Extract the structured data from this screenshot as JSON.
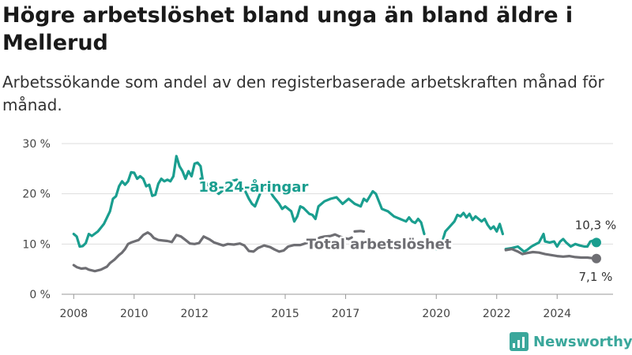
{
  "header": {
    "title": "Högre arbetslöshet bland unga än bland äldre i Mellerud",
    "subtitle": "Arbetssökande som andel av den registerbaserade arbetskraften månad för månad."
  },
  "brand": {
    "name": "Newsworthy",
    "icon": "bar-chart-icon",
    "color": "#3aa79b"
  },
  "chart_data": {
    "type": "line",
    "ylim": [
      0,
      30
    ],
    "xlim": [
      2007.6,
      2025.85
    ],
    "y_ticks": [
      {
        "value": 0,
        "label": "0 %"
      },
      {
        "value": 10,
        "label": "10 %"
      },
      {
        "value": 20,
        "label": "20 %"
      },
      {
        "value": 30,
        "label": "30 %"
      }
    ],
    "x_ticks": [
      {
        "value": 2008,
        "label": "2008"
      },
      {
        "value": 2010,
        "label": "2010"
      },
      {
        "value": 2012,
        "label": "2012"
      },
      {
        "value": 2015,
        "label": "2015"
      },
      {
        "value": 2017,
        "label": "2017"
      },
      {
        "value": 2020,
        "label": "2020"
      },
      {
        "value": 2022,
        "label": "2022"
      },
      {
        "value": 2024,
        "label": "2024"
      }
    ],
    "grid": true,
    "series": [
      {
        "name": "18-24-åringar",
        "color": "#1a9e8f",
        "end_label": "10,3 %",
        "segments": [
          [
            [
              2008.0,
              12.0
            ],
            [
              2008.1,
              11.5
            ],
            [
              2008.2,
              9.5
            ],
            [
              2008.3,
              9.6
            ],
            [
              2008.4,
              10.2
            ],
            [
              2008.5,
              12.0
            ],
            [
              2008.6,
              11.6
            ],
            [
              2008.8,
              12.5
            ],
            [
              2009.0,
              14.0
            ],
            [
              2009.2,
              16.5
            ],
            [
              2009.3,
              19.0
            ],
            [
              2009.4,
              19.5
            ],
            [
              2009.5,
              21.5
            ],
            [
              2009.6,
              22.5
            ],
            [
              2009.7,
              21.8
            ],
            [
              2009.8,
              22.5
            ],
            [
              2009.9,
              24.3
            ],
            [
              2010.0,
              24.2
            ],
            [
              2010.1,
              23.0
            ],
            [
              2010.2,
              23.5
            ],
            [
              2010.3,
              23.0
            ],
            [
              2010.4,
              21.5
            ],
            [
              2010.5,
              21.8
            ],
            [
              2010.6,
              19.6
            ],
            [
              2010.7,
              19.8
            ],
            [
              2010.8,
              22.0
            ],
            [
              2010.9,
              23.0
            ],
            [
              2011.0,
              22.5
            ],
            [
              2011.1,
              22.8
            ],
            [
              2011.2,
              22.5
            ],
            [
              2011.3,
              23.5
            ],
            [
              2011.4,
              27.5
            ],
            [
              2011.5,
              25.5
            ],
            [
              2011.6,
              24.5
            ],
            [
              2011.7,
              23.0
            ],
            [
              2011.8,
              24.5
            ],
            [
              2011.9,
              23.5
            ],
            [
              2012.0,
              26.0
            ],
            [
              2012.1,
              26.2
            ],
            [
              2012.2,
              25.5
            ],
            [
              2012.3,
              21.5
            ]
          ],
          [
            [
              2012.2,
              23.0
            ],
            [
              2012.5,
              21.5
            ],
            [
              2012.8,
              20.0
            ],
            [
              2013.0,
              21.0
            ],
            [
              2013.2,
              22.5
            ],
            [
              2013.4,
              22.8
            ],
            [
              2013.6,
              21.5
            ],
            [
              2013.8,
              19.0
            ],
            [
              2013.9,
              18.0
            ],
            [
              2014.0,
              17.5
            ],
            [
              2014.2,
              20.5
            ],
            [
              2014.4,
              21.5
            ],
            [
              2014.6,
              19.5
            ],
            [
              2014.8,
              18.0
            ],
            [
              2014.9,
              17.0
            ],
            [
              2015.0,
              17.5
            ],
            [
              2015.2,
              16.5
            ],
            [
              2015.3,
              14.5
            ],
            [
              2015.4,
              15.5
            ],
            [
              2015.5,
              17.5
            ],
            [
              2015.6,
              17.2
            ],
            [
              2015.8,
              16.0
            ],
            [
              2015.9,
              15.8
            ],
            [
              2016.0,
              15.0
            ],
            [
              2016.1,
              17.5
            ],
            [
              2016.3,
              18.5
            ],
            [
              2016.5,
              19.0
            ],
            [
              2016.7,
              19.3
            ],
            [
              2016.9,
              18.0
            ],
            [
              2017.1,
              19.0
            ],
            [
              2017.3,
              18.0
            ],
            [
              2017.5,
              17.5
            ],
            [
              2017.6,
              19.0
            ],
            [
              2017.7,
              18.5
            ],
            [
              2017.8,
              19.5
            ],
            [
              2017.9,
              20.5
            ],
            [
              2018.0,
              20.0
            ],
            [
              2018.1,
              18.5
            ],
            [
              2018.2,
              17.0
            ],
            [
              2018.4,
              16.5
            ],
            [
              2018.6,
              15.5
            ],
            [
              2018.8,
              15.0
            ],
            [
              2019.0,
              14.5
            ],
            [
              2019.1,
              15.3
            ],
            [
              2019.2,
              14.5
            ],
            [
              2019.3,
              14.2
            ],
            [
              2019.4,
              15.0
            ],
            [
              2019.5,
              14.3
            ],
            [
              2019.6,
              12.0
            ]
          ],
          [
            [
              2019.8,
              10.0
            ],
            [
              2019.9,
              9.5
            ],
            [
              2020.0,
              9.0
            ],
            [
              2020.1,
              9.8
            ],
            [
              2020.2,
              10.5
            ],
            [
              2020.3,
              12.5
            ],
            [
              2020.45,
              13.5
            ],
            [
              2020.6,
              14.5
            ],
            [
              2020.7,
              15.8
            ],
            [
              2020.8,
              15.5
            ],
            [
              2020.9,
              16.2
            ],
            [
              2021.0,
              15.3
            ],
            [
              2021.1,
              16.0
            ],
            [
              2021.2,
              14.8
            ],
            [
              2021.3,
              15.5
            ],
            [
              2021.5,
              14.5
            ],
            [
              2021.6,
              15.0
            ],
            [
              2021.7,
              13.8
            ],
            [
              2021.8,
              13.0
            ],
            [
              2021.9,
              13.5
            ],
            [
              2022.0,
              12.5
            ],
            [
              2022.1,
              14.0
            ],
            [
              2022.2,
              12.0
            ]
          ],
          [
            [
              2022.3,
              9.0
            ],
            [
              2022.5,
              9.2
            ],
            [
              2022.7,
              9.5
            ],
            [
              2022.9,
              8.5
            ],
            [
              2023.0,
              8.8
            ],
            [
              2023.15,
              9.5
            ],
            [
              2023.3,
              10.0
            ],
            [
              2023.4,
              10.3
            ],
            [
              2023.55,
              12.0
            ],
            [
              2023.6,
              10.5
            ],
            [
              2023.75,
              10.3
            ],
            [
              2023.9,
              10.5
            ],
            [
              2024.0,
              9.5
            ],
            [
              2024.1,
              10.5
            ],
            [
              2024.2,
              11.0
            ],
            [
              2024.3,
              10.3
            ],
            [
              2024.45,
              9.5
            ],
            [
              2024.6,
              10.0
            ],
            [
              2024.75,
              9.7
            ],
            [
              2024.9,
              9.5
            ],
            [
              2025.0,
              9.5
            ],
            [
              2025.1,
              10.5
            ],
            [
              2025.2,
              10.7
            ],
            [
              2025.3,
              10.3
            ]
          ]
        ]
      },
      {
        "name": "Total arbetslöshet",
        "color": "#6e6e73",
        "end_label": "7,1 %",
        "segments": [
          [
            [
              2008.0,
              5.8
            ],
            [
              2008.1,
              5.4
            ],
            [
              2008.25,
              5.1
            ],
            [
              2008.4,
              5.2
            ],
            [
              2008.5,
              4.9
            ],
            [
              2008.7,
              4.6
            ],
            [
              2008.9,
              4.9
            ],
            [
              2009.0,
              5.2
            ],
            [
              2009.1,
              5.5
            ],
            [
              2009.2,
              6.2
            ],
            [
              2009.35,
              6.9
            ],
            [
              2009.5,
              7.8
            ],
            [
              2009.6,
              8.3
            ],
            [
              2009.7,
              9.0
            ],
            [
              2009.8,
              10.0
            ],
            [
              2009.9,
              10.3
            ],
            [
              2010.0,
              10.5
            ],
            [
              2010.15,
              10.8
            ],
            [
              2010.3,
              11.8
            ],
            [
              2010.45,
              12.3
            ],
            [
              2010.55,
              11.9
            ],
            [
              2010.65,
              11.2
            ],
            [
              2010.8,
              10.8
            ],
            [
              2010.95,
              10.7
            ],
            [
              2011.1,
              10.6
            ],
            [
              2011.25,
              10.4
            ],
            [
              2011.4,
              11.8
            ],
            [
              2011.55,
              11.5
            ],
            [
              2011.7,
              10.8
            ],
            [
              2011.85,
              10.1
            ],
            [
              2012.0,
              10.0
            ],
            [
              2012.15,
              10.2
            ],
            [
              2012.3,
              11.5
            ],
            [
              2012.5,
              10.9
            ],
            [
              2012.65,
              10.3
            ],
            [
              2012.8,
              10.0
            ],
            [
              2012.95,
              9.7
            ],
            [
              2013.1,
              10.0
            ],
            [
              2013.3,
              9.9
            ],
            [
              2013.5,
              10.1
            ],
            [
              2013.65,
              9.7
            ],
            [
              2013.8,
              8.6
            ],
            [
              2013.95,
              8.5
            ],
            [
              2014.1,
              9.2
            ],
            [
              2014.3,
              9.7
            ],
            [
              2014.5,
              9.4
            ],
            [
              2014.65,
              8.9
            ],
            [
              2014.8,
              8.5
            ],
            [
              2014.95,
              8.7
            ],
            [
              2015.1,
              9.5
            ],
            [
              2015.3,
              9.8
            ],
            [
              2015.5,
              9.8
            ],
            [
              2015.7,
              10.2
            ],
            [
              2015.85,
              10.4
            ],
            [
              2016.0,
              10.8
            ],
            [
              2016.15,
              11.3
            ],
            [
              2016.3,
              11.5
            ],
            [
              2016.5,
              11.6
            ],
            [
              2016.65,
              11.9
            ],
            [
              2016.8,
              11.5
            ],
            [
              2016.95,
              11.2
            ],
            [
              2017.1,
              11.0
            ],
            [
              2017.2,
              11.3
            ]
          ],
          [
            [
              2017.3,
              12.5
            ],
            [
              2017.5,
              12.6
            ],
            [
              2017.6,
              12.5
            ]
          ],
          [
            [
              2022.3,
              8.8
            ],
            [
              2022.5,
              9.0
            ],
            [
              2022.7,
              8.5
            ],
            [
              2022.85,
              8.0
            ],
            [
              2023.0,
              8.2
            ],
            [
              2023.2,
              8.4
            ],
            [
              2023.4,
              8.3
            ],
            [
              2023.6,
              8.0
            ],
            [
              2023.8,
              7.8
            ],
            [
              2024.0,
              7.6
            ],
            [
              2024.2,
              7.5
            ],
            [
              2024.4,
              7.6
            ],
            [
              2024.6,
              7.4
            ],
            [
              2024.8,
              7.3
            ],
            [
              2025.0,
              7.3
            ],
            [
              2025.15,
              7.2
            ],
            [
              2025.3,
              7.1
            ]
          ]
        ]
      }
    ]
  }
}
